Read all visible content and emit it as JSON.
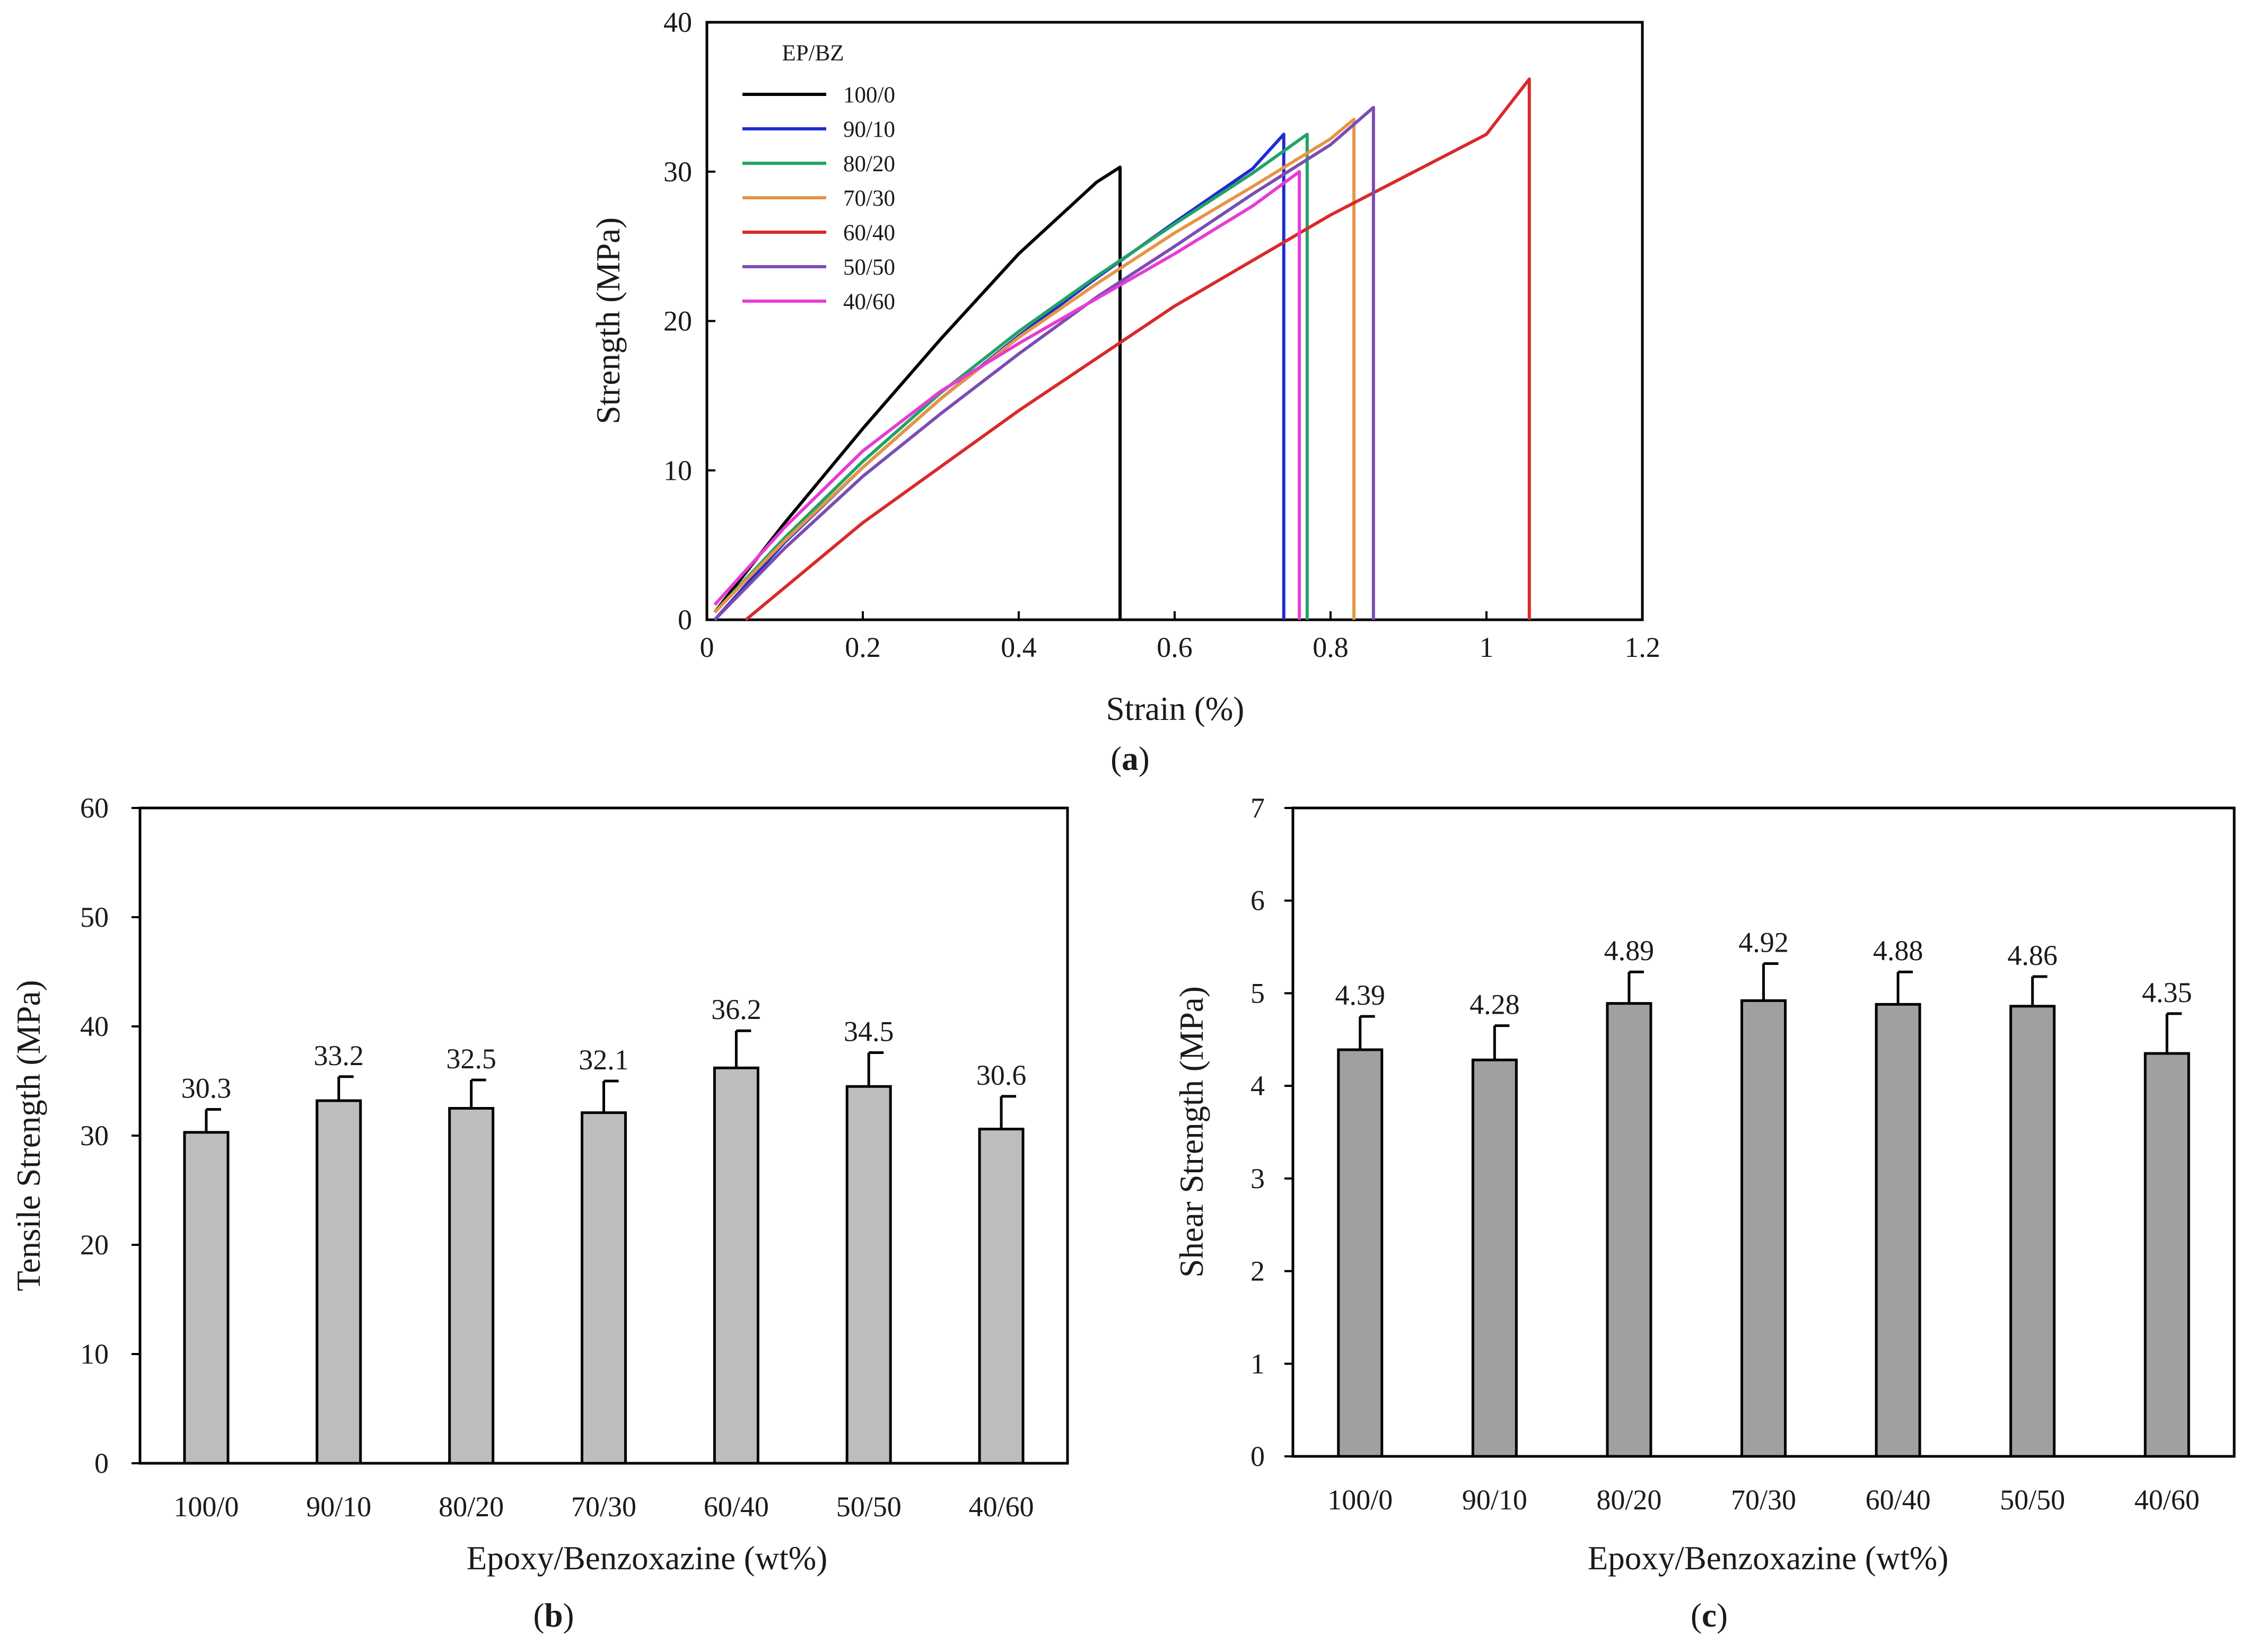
{
  "chart_data": [
    {
      "panel": "(a)",
      "type": "line",
      "xlabel": "Strain (%)",
      "ylabel": "Strength (MPa)",
      "xlim": [
        0,
        1.2
      ],
      "ylim": [
        0,
        40
      ],
      "xticks": [
        "0",
        "0.2",
        "0.4",
        "0.6",
        "0.8",
        "1",
        "1.2"
      ],
      "yticks": [
        "0",
        "10",
        "20",
        "30",
        "40"
      ],
      "grid": false,
      "legend_title": "EP/BZ",
      "legend_position": "top-left",
      "series": [
        {
          "name": "100/0",
          "color": "#000000",
          "x": [
            0.01,
            0.1,
            0.2,
            0.3,
            0.4,
            0.5,
            0.53,
            0.53
          ],
          "y": [
            0.5,
            6.5,
            12.8,
            18.8,
            24.5,
            29.3,
            30.3,
            0
          ]
        },
        {
          "name": "90/10",
          "color": "#1f2bd1",
          "x": [
            0.01,
            0.1,
            0.2,
            0.3,
            0.4,
            0.5,
            0.6,
            0.7,
            0.74,
            0.74
          ],
          "y": [
            0,
            5.2,
            10.2,
            14.8,
            19.0,
            22.9,
            26.6,
            30.2,
            32.5,
            0
          ]
        },
        {
          "name": "80/20",
          "color": "#22a365",
          "x": [
            0.01,
            0.1,
            0.2,
            0.3,
            0.4,
            0.5,
            0.6,
            0.7,
            0.77,
            0.77
          ],
          "y": [
            0.5,
            5.5,
            10.6,
            15.2,
            19.3,
            23.0,
            26.5,
            29.9,
            32.5,
            0
          ]
        },
        {
          "name": "70/30",
          "color": "#e69545",
          "x": [
            0.01,
            0.1,
            0.2,
            0.3,
            0.4,
            0.5,
            0.6,
            0.7,
            0.8,
            0.83,
            0.83
          ],
          "y": [
            0.5,
            5.3,
            10.2,
            14.8,
            18.9,
            22.5,
            25.9,
            29.0,
            32.2,
            33.5,
            0
          ]
        },
        {
          "name": "60/40",
          "color": "#d92a2a",
          "x": [
            0.05,
            0.2,
            0.4,
            0.6,
            0.8,
            1.0,
            1.055,
            1.055
          ],
          "y": [
            0,
            6.5,
            14.0,
            21.0,
            27.1,
            32.5,
            36.2,
            0
          ]
        },
        {
          "name": "50/50",
          "color": "#7a4db3",
          "x": [
            0.01,
            0.1,
            0.2,
            0.3,
            0.4,
            0.5,
            0.6,
            0.7,
            0.8,
            0.855,
            0.855
          ],
          "y": [
            0,
            4.8,
            9.6,
            13.8,
            17.8,
            21.6,
            25.0,
            28.5,
            31.8,
            34.3,
            0
          ]
        },
        {
          "name": "40/60",
          "color": "#e63bd6",
          "x": [
            0.01,
            0.1,
            0.2,
            0.3,
            0.4,
            0.5,
            0.6,
            0.7,
            0.76,
            0.76
          ],
          "y": [
            1.0,
            6.2,
            11.3,
            15.3,
            18.5,
            21.5,
            24.5,
            27.7,
            30.0,
            0
          ]
        }
      ]
    },
    {
      "panel": "(b)",
      "type": "bar",
      "xlabel": "Epoxy/Benzoxazine (wt%)",
      "ylabel": "Tensile Strength (MPa)",
      "ylim": [
        0,
        60
      ],
      "yticks": [
        "0",
        "10",
        "20",
        "30",
        "40",
        "50",
        "60"
      ],
      "categories": [
        "100/0",
        "90/10",
        "80/20",
        "70/30",
        "60/40",
        "50/50",
        "40/60"
      ],
      "values": [
        30.3,
        33.2,
        32.5,
        32.1,
        36.2,
        34.5,
        30.6
      ],
      "value_labels": [
        "30.3",
        "33.2",
        "32.5",
        "32.1",
        "36.2",
        "34.5",
        "30.6"
      ],
      "error_upper": [
        32.4,
        35.4,
        35.1,
        35.0,
        39.6,
        37.6,
        33.6
      ],
      "bar_color": "#bdbdbd"
    },
    {
      "panel": "(c)",
      "type": "bar",
      "xlabel": "Epoxy/Benzoxazine (wt%)",
      "ylabel": "Shear Strength (MPa)",
      "ylim": [
        0,
        7
      ],
      "yticks": [
        "0",
        "1",
        "2",
        "3",
        "4",
        "5",
        "6",
        "7"
      ],
      "categories": [
        "100/0",
        "90/10",
        "80/20",
        "70/30",
        "60/40",
        "50/50",
        "40/60"
      ],
      "values": [
        4.39,
        4.28,
        4.89,
        4.92,
        4.88,
        4.86,
        4.35
      ],
      "value_labels": [
        "4.39",
        "4.28",
        "4.89",
        "4.92",
        "4.88",
        "4.86",
        "4.35"
      ],
      "error_upper": [
        4.75,
        4.65,
        5.23,
        5.32,
        5.23,
        5.18,
        4.78
      ],
      "bar_color": "#a0a0a0"
    }
  ],
  "labels": {
    "a_open": "(",
    "a_letter": "a",
    "a_close": ")",
    "b_open": "(",
    "b_letter": "b",
    "b_close": ")",
    "c_open": "(",
    "c_letter": "c",
    "c_close": ")"
  }
}
